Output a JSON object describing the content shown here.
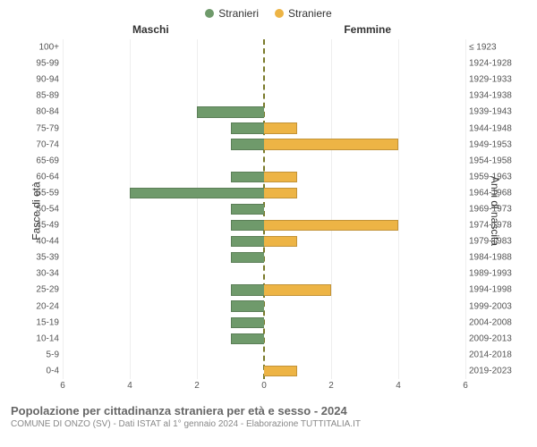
{
  "legend": {
    "male": {
      "label": "Stranieri",
      "color": "#6f9a6b"
    },
    "female": {
      "label": "Straniere",
      "color": "#edb445"
    }
  },
  "headers": {
    "male": "Maschi",
    "female": "Femmine",
    "left_axis": "Fasce di età",
    "right_axis": "Anni di nascita"
  },
  "chart": {
    "type": "population-pyramid",
    "x_max": 6,
    "x_ticks": [
      6,
      4,
      2,
      0,
      2,
      4,
      6
    ],
    "grid_color": "#eeeeee",
    "centerline_color": "#7a7a2a",
    "background_color": "#ffffff",
    "male_color": "#6f9a6b",
    "female_color": "#edb445",
    "label_fontsize": 10,
    "header_fontsize": 12,
    "rows": [
      {
        "age": "100+",
        "birth": "≤ 1923",
        "m": 0,
        "f": 0
      },
      {
        "age": "95-99",
        "birth": "1924-1928",
        "m": 0,
        "f": 0
      },
      {
        "age": "90-94",
        "birth": "1929-1933",
        "m": 0,
        "f": 0
      },
      {
        "age": "85-89",
        "birth": "1934-1938",
        "m": 0,
        "f": 0
      },
      {
        "age": "80-84",
        "birth": "1939-1943",
        "m": 2,
        "f": 0
      },
      {
        "age": "75-79",
        "birth": "1944-1948",
        "m": 1,
        "f": 1
      },
      {
        "age": "70-74",
        "birth": "1949-1953",
        "m": 1,
        "f": 4
      },
      {
        "age": "65-69",
        "birth": "1954-1958",
        "m": 0,
        "f": 0
      },
      {
        "age": "60-64",
        "birth": "1959-1963",
        "m": 1,
        "f": 1
      },
      {
        "age": "55-59",
        "birth": "1964-1968",
        "m": 4,
        "f": 1
      },
      {
        "age": "50-54",
        "birth": "1969-1973",
        "m": 1,
        "f": 0
      },
      {
        "age": "45-49",
        "birth": "1974-1978",
        "m": 1,
        "f": 4
      },
      {
        "age": "40-44",
        "birth": "1979-1983",
        "m": 1,
        "f": 1
      },
      {
        "age": "35-39",
        "birth": "1984-1988",
        "m": 1,
        "f": 0
      },
      {
        "age": "30-34",
        "birth": "1989-1993",
        "m": 0,
        "f": 0
      },
      {
        "age": "25-29",
        "birth": "1994-1998",
        "m": 1,
        "f": 2
      },
      {
        "age": "20-24",
        "birth": "1999-2003",
        "m": 1,
        "f": 0
      },
      {
        "age": "15-19",
        "birth": "2004-2008",
        "m": 1,
        "f": 0
      },
      {
        "age": "10-14",
        "birth": "2009-2013",
        "m": 1,
        "f": 0
      },
      {
        "age": "5-9",
        "birth": "2014-2018",
        "m": 0,
        "f": 0
      },
      {
        "age": "0-4",
        "birth": "2019-2023",
        "m": 0,
        "f": 1
      }
    ]
  },
  "caption": {
    "title": "Popolazione per cittadinanza straniera per età e sesso - 2024",
    "subtitle": "COMUNE DI ONZO (SV) - Dati ISTAT al 1° gennaio 2024 - Elaborazione TUTTITALIA.IT"
  }
}
